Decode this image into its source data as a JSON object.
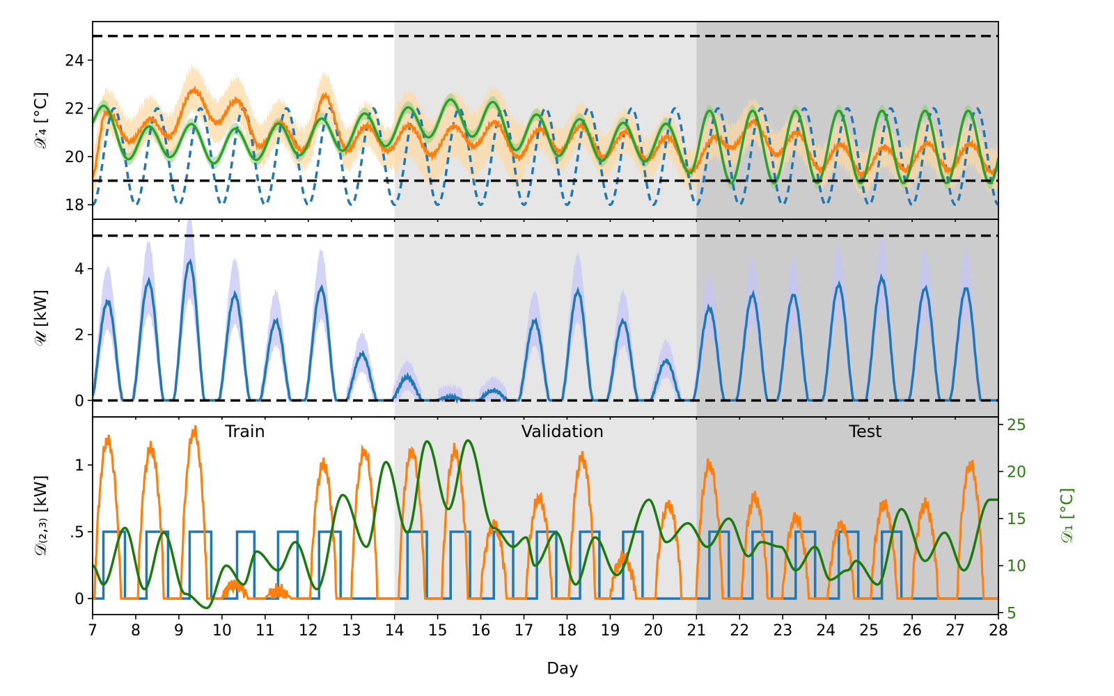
{
  "chart_data": [
    {
      "type": "line",
      "panel": "top",
      "ylabel": "𝒳₄ [°C]",
      "ylim": [
        17.4,
        25.6
      ],
      "yticks": [
        18,
        20,
        22,
        24
      ],
      "xlim": [
        7,
        28
      ],
      "bounds": {
        "lower": 19,
        "upper": 25
      },
      "series": [
        {
          "name": "reference (dashed)",
          "color": "#1f77b4",
          "style": "dashed",
          "model": {
            "mean": 20,
            "amp": 2,
            "phase": 0.25
          }
        },
        {
          "name": "trajectory (orange)",
          "color": "#ff7f0e",
          "band_color": "#fdd9a0",
          "day_means": [
            [
              7,
              19.5
            ],
            [
              7.3,
              21.3
            ],
            [
              8.5,
              21.0
            ],
            [
              9.3,
              22.2
            ],
            [
              10.3,
              21.8
            ],
            [
              11,
              20.9
            ],
            [
              12,
              20.8
            ],
            [
              12.4,
              22.0
            ],
            [
              13,
              20.7
            ],
            [
              14,
              20.8
            ],
            [
              15,
              20.6
            ],
            [
              16,
              21.0
            ],
            [
              17,
              20.5
            ],
            [
              18,
              20.8
            ],
            [
              19,
              20.5
            ],
            [
              20,
              20.4
            ],
            [
              21,
              19.9
            ],
            [
              22,
              21.0
            ],
            [
              23,
              20.6
            ],
            [
              24,
              20.0
            ],
            [
              25,
              19.8
            ],
            [
              26,
              20.0
            ],
            [
              27,
              20.0
            ],
            [
              28,
              19.9
            ]
          ],
          "amp": 0.55
        },
        {
          "name": "trajectory (green)",
          "color": "#2ca02c",
          "day_means": [
            [
              7,
              21.6
            ],
            [
              8,
              20.5
            ],
            [
              9,
              20.7
            ],
            [
              10,
              20.4
            ],
            [
              11,
              20.6
            ],
            [
              12,
              20.8
            ],
            [
              13,
              21.0
            ],
            [
              14,
              21.2
            ],
            [
              15,
              21.6
            ],
            [
              16,
              21.6
            ],
            [
              17,
              21.0
            ],
            [
              18,
              20.8
            ],
            [
              19,
              20.6
            ],
            [
              20,
              20.6
            ],
            [
              21,
              20.4
            ],
            [
              28,
              20.4
            ]
          ],
          "amps": [
            [
              7,
              0.7
            ],
            [
              20.5,
              0.8
            ],
            [
              21.2,
              1.5
            ],
            [
              28,
              1.5
            ]
          ]
        }
      ]
    },
    {
      "type": "line",
      "panel": "middle",
      "ylabel": "𝒰 [kW]",
      "ylim": [
        -0.5,
        5.5
      ],
      "yticks": [
        0,
        2,
        4
      ],
      "xlim": [
        7,
        28
      ],
      "bounds": {
        "lower": 0,
        "upper": 5
      },
      "series": [
        {
          "name": "input",
          "color": "#1f77b4",
          "band_color": "#c5c5f7",
          "daily_peaks": [
            [
              7.35,
              3.0
            ],
            [
              8.3,
              3.6
            ],
            [
              9.25,
              4.2
            ],
            [
              10.3,
              3.2
            ],
            [
              11.25,
              2.4
            ],
            [
              12.3,
              3.4
            ],
            [
              13.25,
              1.4
            ],
            [
              14.3,
              0.7
            ],
            [
              15.3,
              0.1
            ],
            [
              16.3,
              0.3
            ],
            [
              17.25,
              2.4
            ],
            [
              18.25,
              3.3
            ],
            [
              19.3,
              2.4
            ],
            [
              20.3,
              1.2
            ],
            [
              21.3,
              2.8
            ],
            [
              22.3,
              3.2
            ],
            [
              23.25,
              3.2
            ],
            [
              24.3,
              3.5
            ],
            [
              25.3,
              3.7
            ],
            [
              26.3,
              3.4
            ],
            [
              27.25,
              3.4
            ]
          ]
        }
      ]
    },
    {
      "type": "line",
      "panel": "bottom",
      "ylabel": "𝒟₍₂,₃₎ [kW]",
      "ylabel_right": "𝒟₁ [°C]",
      "ylim": [
        -0.12,
        1.36
      ],
      "yticks": [
        0,
        0.5,
        1
      ],
      "ytick_labels": [
        "0",
        ".5",
        "1"
      ],
      "ylim_right": [
        4.8,
        25.8
      ],
      "yticks_right": [
        5,
        10,
        15,
        20,
        25
      ],
      "xlim": [
        7,
        28
      ],
      "xlabel": "Day",
      "xticks": [
        7,
        8,
        9,
        10,
        11,
        12,
        13,
        14,
        15,
        16,
        17,
        18,
        19,
        20,
        21,
        22,
        23,
        24,
        25,
        26,
        27,
        28
      ],
      "series": [
        {
          "name": "occupancy (blue)",
          "color": "#1f77b4",
          "pulses": [
            [
              7.25,
              7.75
            ],
            [
              8.25,
              8.75
            ],
            [
              9.25,
              9.75
            ],
            [
              10.35,
              10.75
            ],
            [
              11.3,
              11.75
            ],
            [
              12.25,
              12.75
            ],
            [
              14.3,
              14.75
            ],
            [
              15.3,
              15.75
            ],
            [
              16.3,
              16.75
            ],
            [
              17.3,
              17.75
            ],
            [
              18.3,
              18.75
            ],
            [
              19.3,
              19.75
            ],
            [
              21.3,
              21.75
            ],
            [
              22.3,
              22.75
            ],
            [
              23.3,
              23.75
            ],
            [
              24.3,
              24.75
            ],
            [
              25.3,
              25.75
            ]
          ],
          "level": 0.5
        },
        {
          "name": "solar (orange)",
          "color": "#ff7f0e",
          "daily_peaks": [
            [
              7.35,
              1.18
            ],
            [
              8.35,
              1.12
            ],
            [
              9.35,
              1.25
            ],
            [
              10.3,
              0.1
            ],
            [
              11.3,
              0.05
            ],
            [
              12.35,
              1.0
            ],
            [
              13.3,
              1.1
            ],
            [
              14.4,
              1.1
            ],
            [
              15.4,
              1.1
            ],
            [
              16.3,
              0.55
            ],
            [
              17.35,
              0.75
            ],
            [
              18.35,
              1.05
            ],
            [
              19.3,
              0.3
            ],
            [
              20.35,
              0.7
            ],
            [
              21.3,
              1.0
            ],
            [
              22.35,
              0.75
            ],
            [
              23.3,
              0.6
            ],
            [
              24.35,
              0.55
            ],
            [
              25.35,
              0.7
            ],
            [
              26.3,
              0.7
            ],
            [
              27.35,
              1.0
            ]
          ]
        },
        {
          "name": "outdoor temperature (green)",
          "color": "#2ca02c",
          "axis": "right",
          "keypoints": [
            [
              7,
              10
            ],
            [
              7.25,
              8
            ],
            [
              7.75,
              14
            ],
            [
              8.2,
              7.5
            ],
            [
              8.65,
              13.5
            ],
            [
              9.15,
              7
            ],
            [
              9.65,
              5.5
            ],
            [
              10.1,
              10
            ],
            [
              10.5,
              8
            ],
            [
              10.8,
              11.5
            ],
            [
              11.3,
              9.5
            ],
            [
              11.7,
              12.5
            ],
            [
              12.2,
              7.5
            ],
            [
              12.8,
              17.5
            ],
            [
              13.35,
              12
            ],
            [
              13.8,
              21
            ],
            [
              14.3,
              13.5
            ],
            [
              14.75,
              23.2
            ],
            [
              15.25,
              16
            ],
            [
              15.7,
              23.3
            ],
            [
              16.3,
              14
            ],
            [
              16.75,
              12
            ],
            [
              17.05,
              13
            ],
            [
              17.25,
              10
            ],
            [
              17.75,
              13.5
            ],
            [
              18.2,
              8
            ],
            [
              18.65,
              13
            ],
            [
              19.15,
              9
            ],
            [
              19.9,
              17
            ],
            [
              20.3,
              12.5
            ],
            [
              20.8,
              14.5
            ],
            [
              21.25,
              12
            ],
            [
              21.75,
              15
            ],
            [
              22.2,
              11
            ],
            [
              22.5,
              12.5
            ],
            [
              22.95,
              12
            ],
            [
              23.3,
              9.5
            ],
            [
              23.75,
              12
            ],
            [
              24.1,
              8.5
            ],
            [
              24.5,
              9.5
            ],
            [
              24.7,
              10.5
            ],
            [
              25.2,
              8
            ],
            [
              25.75,
              16
            ],
            [
              26.3,
              10.5
            ],
            [
              26.75,
              13.5
            ],
            [
              27.2,
              9.5
            ],
            [
              27.8,
              17
            ],
            [
              28,
              17
            ]
          ]
        }
      ]
    }
  ],
  "regions": [
    {
      "label": "Train",
      "from": 7,
      "to": 14,
      "color": "#ffffff"
    },
    {
      "label": "Validation",
      "from": 14,
      "to": 21,
      "color": "#e6e6e6"
    },
    {
      "label": "Test",
      "from": 21,
      "to": 28,
      "color": "#cccccc"
    }
  ],
  "colors": {
    "green_axis": "#2a7a13",
    "bound_line": "#000000"
  }
}
